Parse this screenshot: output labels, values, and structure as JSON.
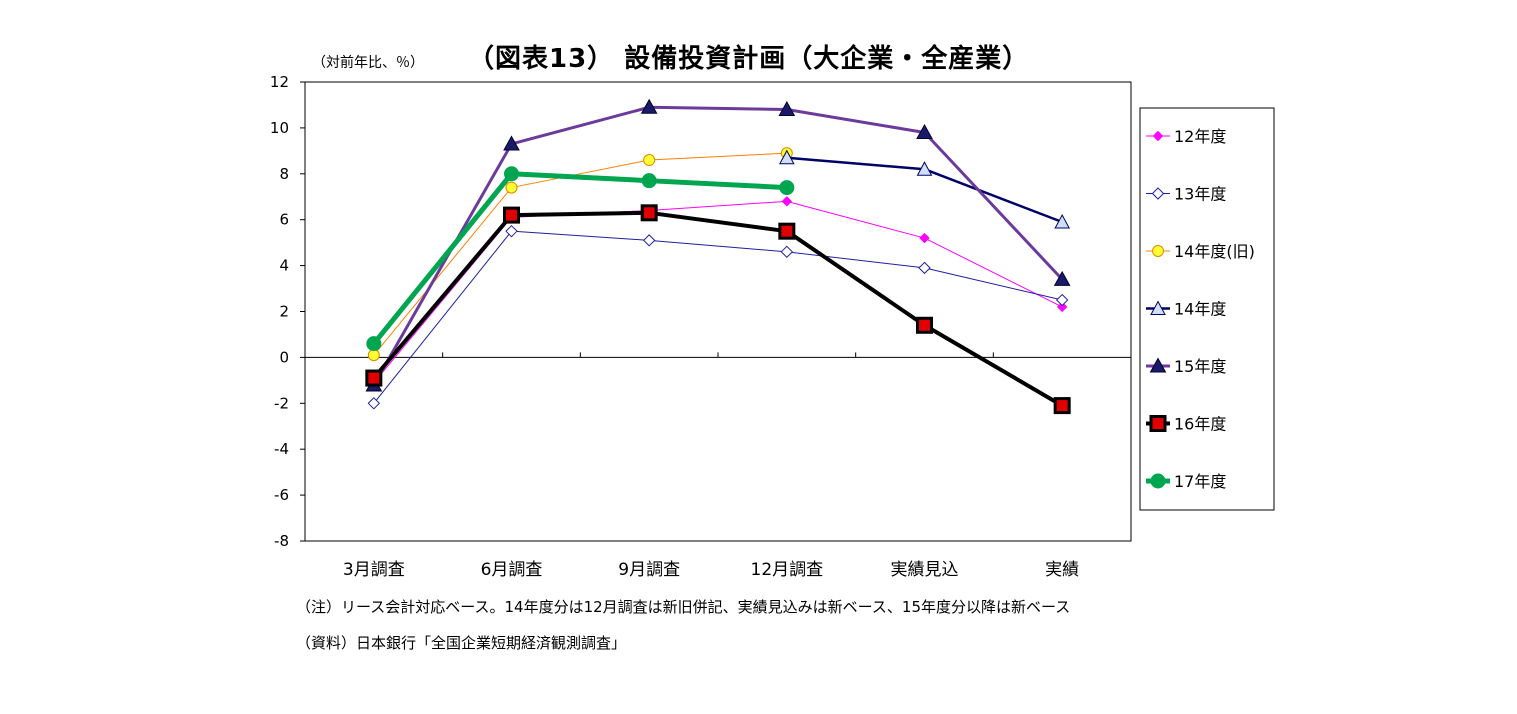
{
  "chart_data": {
    "type": "line",
    "title": "（図表13） 設備投資計画（大企業・全産業）",
    "ylabel": "（対前年比、％）",
    "xlabel": "",
    "categories": [
      "3月調査",
      "6月調査",
      "9月調査",
      "12月調査",
      "実績見込",
      "実績"
    ],
    "ylim": [
      -8,
      12
    ],
    "yticks": [
      "12",
      "10",
      "8",
      "6",
      "4",
      "2",
      "0",
      "-2",
      "-4",
      "-6",
      "-8"
    ],
    "ytick_values": [
      12,
      10,
      8,
      6,
      4,
      2,
      0,
      -2,
      -4,
      -6,
      -8
    ],
    "grid": false,
    "legend_position": "right",
    "series": [
      {
        "name": "12年度",
        "values": [
          -1.1,
          6.1,
          6.4,
          6.8,
          5.2,
          2.2
        ],
        "color": "#ff00ff",
        "marker": "diamond-filled",
        "line_width": 1
      },
      {
        "name": "13年度",
        "values": [
          -2.0,
          5.5,
          5.1,
          4.6,
          3.9,
          2.5
        ],
        "color": "#1f1fa0",
        "marker": "diamond-open",
        "line_width": 1
      },
      {
        "name": "14年度(旧)",
        "values": [
          0.1,
          7.4,
          8.6,
          8.9,
          null,
          null
        ],
        "color": "#ff8000",
        "marker": "circle-yellow",
        "line_width": 1
      },
      {
        "name": "14年度",
        "values": [
          null,
          null,
          null,
          8.7,
          8.2,
          5.9
        ],
        "color": "#000066",
        "marker": "triangle-open",
        "line_width": 2.5
      },
      {
        "name": "15年度",
        "values": [
          -1.2,
          9.3,
          10.9,
          10.8,
          9.8,
          3.4
        ],
        "color": "#6b3a9a",
        "marker": "triangle-filled",
        "line_width": 3
      },
      {
        "name": "16年度",
        "values": [
          -0.9,
          6.2,
          6.3,
          5.5,
          1.4,
          -2.1
        ],
        "color": "#000000",
        "marker": "square-red",
        "line_width": 4
      },
      {
        "name": "17年度",
        "values": [
          0.6,
          8.0,
          7.7,
          7.4,
          null,
          null
        ],
        "color": "#00a550",
        "marker": "circle-green",
        "line_width": 5
      }
    ]
  },
  "notes": {
    "note": "（注）リース会計対応ベース。14年度分は12月調査は新旧併記、実績見込みは新ベース、15年度分以降は新ベース",
    "source": "（資料）日本銀行「全国企業短期経済観測調査」"
  }
}
